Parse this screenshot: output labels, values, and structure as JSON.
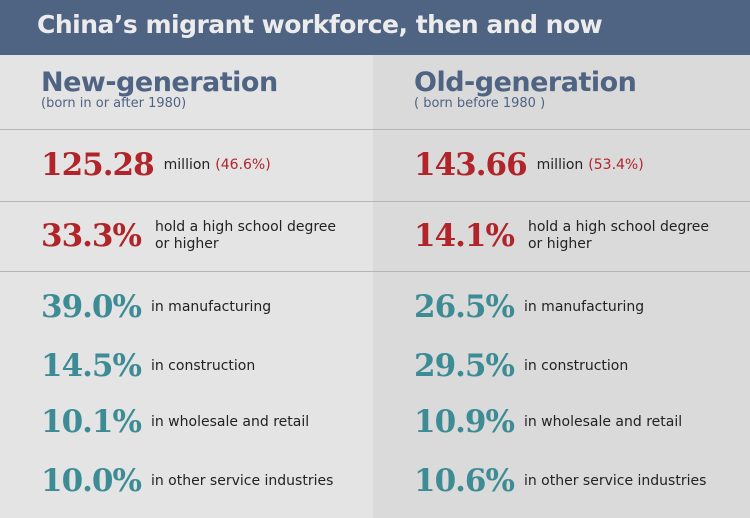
{
  "title": "China’s migrant workforce, then and now",
  "columns": [
    {
      "heading": "New-generation",
      "subheading": "(born in or after 1980)",
      "population": "125.28",
      "population_unit": "million",
      "population_share": "(46.6%)",
      "education": "33.3%",
      "education_label_1": "hold a high school degree",
      "education_label_2": "or higher",
      "sectors": [
        {
          "value": "39.0%",
          "label": "in manufacturing"
        },
        {
          "value": "14.5%",
          "label": "in construction"
        },
        {
          "value": "10.1%",
          "label": "in wholesale and retail"
        },
        {
          "value": "10.0%",
          "label": "in other service industries"
        }
      ]
    },
    {
      "heading": "Old-generation",
      "subheading": "( born before 1980 )",
      "population": "143.66",
      "population_unit": "million",
      "population_share": "(53.4%)",
      "education": "14.1%",
      "education_label_1": "hold a high school degree",
      "education_label_2": "or higher",
      "sectors": [
        {
          "value": "26.5%",
          "label": "in manufacturing"
        },
        {
          "value": "29.5%",
          "label": "in construction"
        },
        {
          "value": "10.9%",
          "label": "in wholesale and retail"
        },
        {
          "value": "10.6%",
          "label": "in other service industries"
        }
      ]
    }
  ],
  "colors": {
    "header": "#4f6383",
    "red": "#b0242a",
    "teal": "#3d8c95"
  }
}
